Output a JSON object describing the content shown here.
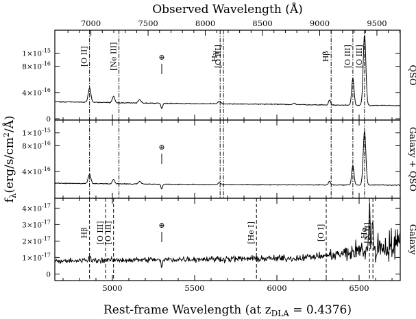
{
  "chart_data": {
    "type": "line",
    "top_axis_title": "Observed Wavelength (Å)",
    "bottom_axis_title_main": "Rest-frame Wavelength (at z",
    "bottom_axis_title_sub": "DLA",
    "bottom_axis_title_end": " = 0.4376)",
    "y_axis_title_main": "f",
    "y_axis_title_sub": "λ",
    "y_axis_title_end": "(erg/s/cm",
    "y_axis_title_sup": "2",
    "y_axis_title_tail": "/Å)",
    "redshift": 0.4376,
    "rest_xlim": [
      4650,
      6750
    ],
    "rest_ticks": [
      {
        "value": 5000,
        "label": "5000"
      },
      {
        "value": 5500,
        "label": "5500"
      },
      {
        "value": 6000,
        "label": "6000"
      },
      {
        "value": 6500,
        "label": "6500"
      }
    ],
    "observed_ticks": [
      {
        "value": 7000,
        "label": "7000"
      },
      {
        "value": 7500,
        "label": "7500"
      },
      {
        "value": 8000,
        "label": "8000"
      },
      {
        "value": 8500,
        "label": "8500"
      },
      {
        "value": 9000,
        "label": "9000"
      },
      {
        "value": 9500,
        "label": "9500"
      }
    ],
    "panels": [
      {
        "label": "QSO",
        "ylim": [
          -2e-17,
          1.35e-15
        ],
        "yticks": [
          {
            "value": 0,
            "base": "0",
            "exp": ""
          },
          {
            "value": 4e-16,
            "base": "4×10",
            "exp": "-16"
          },
          {
            "value": 8e-16,
            "base": "8×10",
            "exp": "-16"
          },
          {
            "value": 1e-15,
            "base": "1×10",
            "exp": "-15"
          }
        ],
        "earth_symbol": "⊕",
        "earth_x": 5300,
        "continuum": [
          [
            4650,
            2.6e-16
          ],
          [
            5000,
            2.45e-16
          ],
          [
            5500,
            2.3e-16
          ],
          [
            6000,
            2.2e-16
          ],
          [
            6300,
            2.1e-16
          ],
          [
            6750,
            2e-16
          ]
        ],
        "emission": [
          {
            "x": 4861,
            "amp": 2.2e-16,
            "w": 8
          },
          {
            "x": 5007,
            "amp": 1e-16,
            "w": 7
          },
          {
            "x": 5165,
            "amp": 5e-17,
            "w": 8
          },
          {
            "x": 5300,
            "amp": -8e-17,
            "w": 5
          },
          {
            "x": 5650,
            "amp": 4e-17,
            "w": 8
          },
          {
            "x": 6105,
            "amp": 2e-17,
            "w": 8
          },
          {
            "x": 6320,
            "amp": 8e-17,
            "w": 6
          },
          {
            "x": 6462,
            "amp": 4.2e-16,
            "w": 7
          },
          {
            "x": 6533,
            "amp": 1.08e-15,
            "w": 8
          }
        ],
        "lines": [
          {
            "x": 4861,
            "label": "[O II]",
            "style": "dashdot",
            "label_y": 9.5e-16
          },
          {
            "x": 5040,
            "label": "[Ne III]",
            "style": "dashdot",
            "label_y": 9.5e-16
          },
          {
            "x": 5655,
            "label": "Hγ",
            "style": "dashdot",
            "label_y": 9.5e-16
          },
          {
            "x": 5675,
            "label": "[O III]",
            "style": "dashdot",
            "label_y": 9.5e-16
          },
          {
            "x": 6330,
            "label": "Hβ",
            "style": "dashdot",
            "label_y": 9.5e-16
          },
          {
            "x": 6462,
            "label": "[O III]",
            "style": "dashdot",
            "label_y": 9.5e-16
          },
          {
            "x": 6533,
            "label": "[O III]",
            "style": "dashdot",
            "label_y": 9.5e-16
          }
        ]
      },
      {
        "label": "Galaxy + QSO",
        "ylim": [
          -2e-17,
          1.2e-15
        ],
        "yticks": [
          {
            "value": 4e-16,
            "base": "4×10",
            "exp": "-16"
          },
          {
            "value": 8e-16,
            "base": "8×10",
            "exp": "-16"
          },
          {
            "value": 1e-15,
            "base": "1×10",
            "exp": "-15"
          }
        ],
        "earth_symbol": "⊕",
        "earth_x": 5300,
        "continuum": [
          [
            4650,
            2.15e-16
          ],
          [
            5000,
            2.05e-16
          ],
          [
            5500,
            1.95e-16
          ],
          [
            6000,
            1.9e-16
          ],
          [
            6750,
            1.85e-16
          ]
        ],
        "emission": [
          {
            "x": 4861,
            "amp": 1.5e-16,
            "w": 8
          },
          {
            "x": 5007,
            "amp": 7e-17,
            "w": 7
          },
          {
            "x": 5165,
            "amp": 4e-17,
            "w": 8
          },
          {
            "x": 5300,
            "amp": -7e-17,
            "w": 5
          },
          {
            "x": 5650,
            "amp": 3e-17,
            "w": 8
          },
          {
            "x": 6320,
            "amp": 6e-17,
            "w": 6
          },
          {
            "x": 6462,
            "amp": 3.1e-16,
            "w": 7
          },
          {
            "x": 6533,
            "amp": 8.4e-16,
            "w": 8
          }
        ],
        "lines": [
          {
            "x": 4861,
            "label": "",
            "style": "dashdot"
          },
          {
            "x": 5040,
            "label": "",
            "style": "dashdot"
          },
          {
            "x": 5655,
            "label": "",
            "style": "dashdot"
          },
          {
            "x": 5675,
            "label": "",
            "style": "dashdot"
          },
          {
            "x": 6330,
            "label": "",
            "style": "dashdot"
          },
          {
            "x": 6462,
            "label": "",
            "style": "dashdot"
          },
          {
            "x": 6533,
            "label": "",
            "style": "dashdot"
          }
        ]
      },
      {
        "label": "Galaxy",
        "ylim": [
          -4e-18,
          4.6e-17
        ],
        "yticks": [
          {
            "value": 0,
            "base": "0",
            "exp": ""
          },
          {
            "value": 1e-17,
            "base": "1×10",
            "exp": "-17"
          },
          {
            "value": 2e-17,
            "base": "2×10",
            "exp": "-17"
          },
          {
            "value": 3e-17,
            "base": "3×10",
            "exp": "-17"
          },
          {
            "value": 4e-17,
            "base": "4×10",
            "exp": "-17"
          }
        ],
        "earth_symbol": "⊕",
        "earth_x": 5300,
        "continuum": [
          [
            4650,
            8e-18
          ],
          [
            5500,
            9e-18
          ],
          [
            6100,
            9.5e-18
          ],
          [
            6400,
            1.2e-17
          ],
          [
            6600,
            1.6e-17
          ],
          [
            6750,
            1.8e-17
          ]
        ],
        "emission": [
          {
            "x": 4861,
            "amp": 2e-18,
            "w": 5
          },
          {
            "x": 5300,
            "amp": -5e-18,
            "w": 5
          },
          {
            "x": 6563,
            "amp": 2.6e-17,
            "w": 4
          },
          {
            "x": 6583,
            "amp": 1.2e-17,
            "w": 4
          }
        ],
        "noise": [
          [
            4650,
            1.2e-18
          ],
          [
            6300,
            1.8e-18
          ],
          [
            6450,
            5e-18
          ],
          [
            6750,
            1e-17
          ]
        ],
        "lines": [
          {
            "x": 4861,
            "label": "Hβ",
            "style": "dashed",
            "label_y": 2.5e-17
          },
          {
            "x": 4959,
            "label": "[O III]",
            "style": "dashed",
            "label_y": 2.5e-17
          },
          {
            "x": 5007,
            "label": "[O III]",
            "style": "dashed",
            "label_y": 2.5e-17
          },
          {
            "x": 5876,
            "label": "[He I]",
            "style": "dashed",
            "label_y": 2.5e-17
          },
          {
            "x": 6300,
            "label": "[O I]",
            "style": "dashed",
            "label_y": 2.5e-17
          },
          {
            "x": 6563,
            "label": "Hα",
            "style": "dashed",
            "label_y": 2.5e-17
          },
          {
            "x": 6584,
            "label": "[N II]",
            "style": "dashed",
            "label_y": 2.5e-17
          }
        ]
      }
    ]
  }
}
